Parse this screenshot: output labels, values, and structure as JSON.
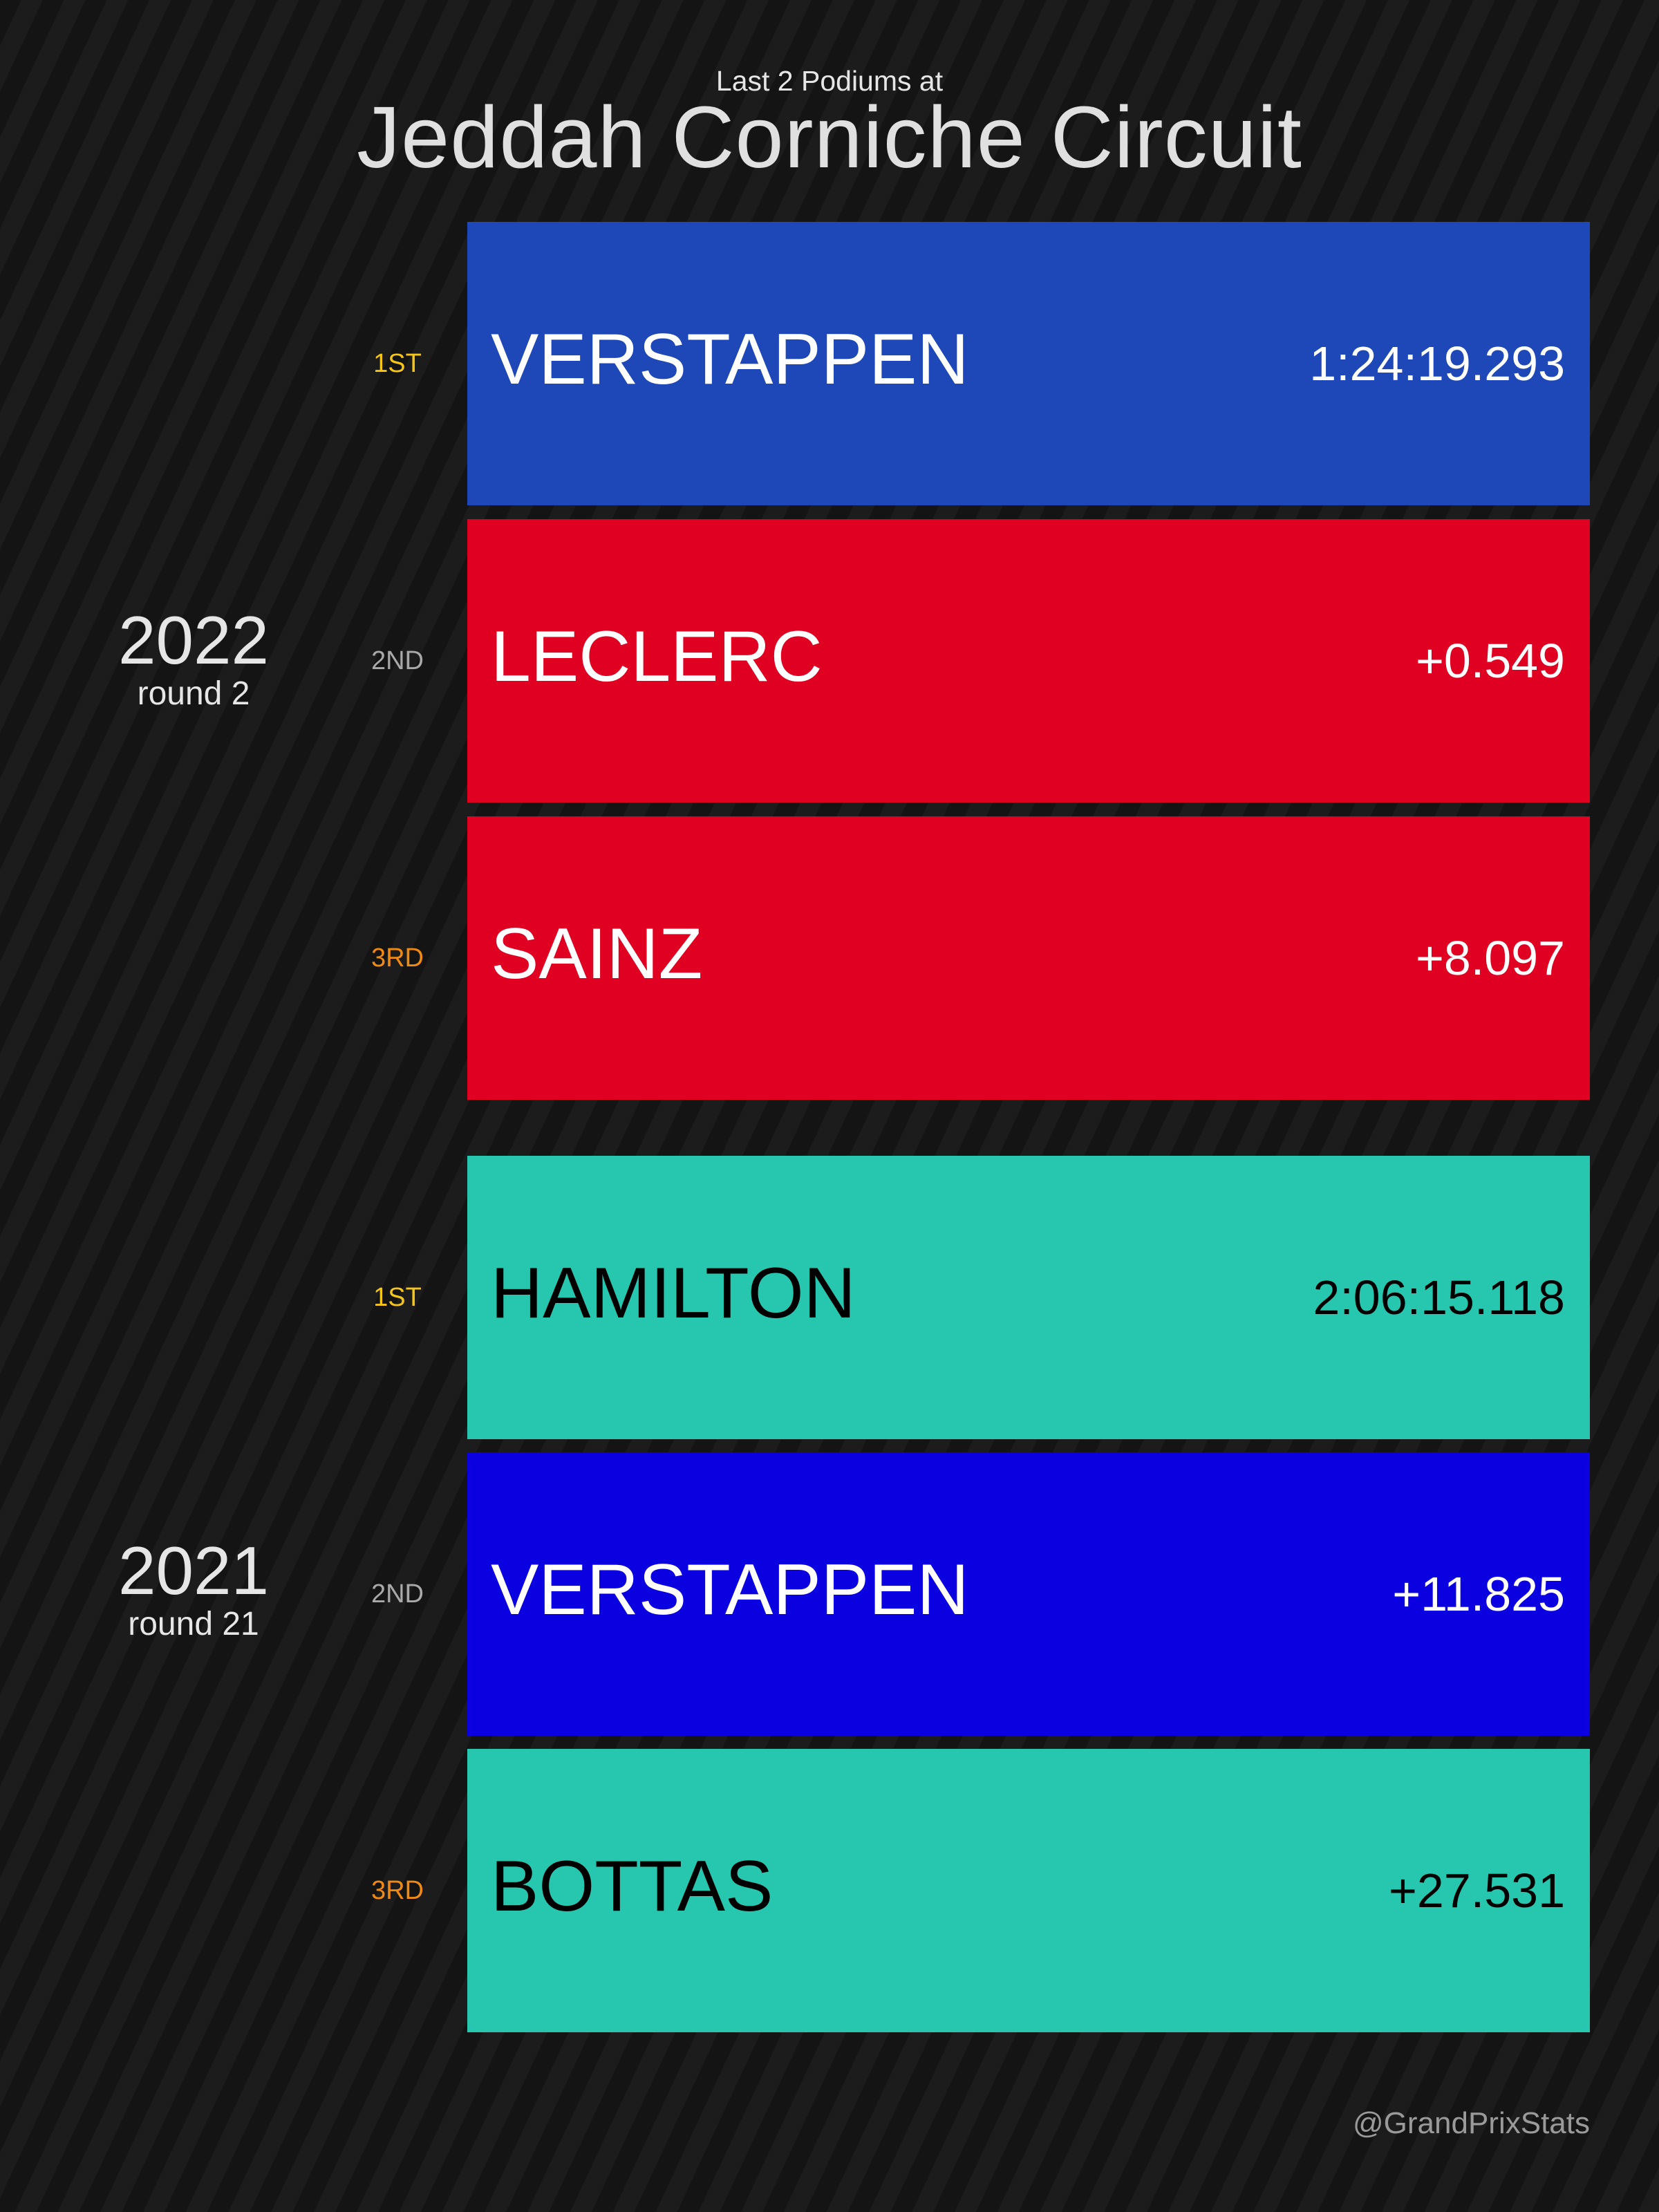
{
  "header": {
    "subtitle": "Last 2 Podiums at",
    "title": "Jeddah Corniche Circuit"
  },
  "races": [
    {
      "year": "2022",
      "round": "round 2",
      "podium": [
        {
          "position": "1ST",
          "position_color": "#f5c518",
          "driver": "VERSTAPPEN",
          "time": "1:24:19.293",
          "team_color": "#1e48b8",
          "text_color": "#ffffff"
        },
        {
          "position": "2ND",
          "position_color": "#a9a9a9",
          "driver": "LECLERC",
          "time": "+0.549",
          "team_color": "#e00022",
          "text_color": "#ffffff"
        },
        {
          "position": "3RD",
          "position_color": "#f08a10",
          "driver": "SAINZ",
          "time": "+8.097",
          "team_color": "#e00022",
          "text_color": "#ffffff"
        }
      ]
    },
    {
      "year": "2021",
      "round": "round 21",
      "podium": [
        {
          "position": "1ST",
          "position_color": "#f5c518",
          "driver": "HAMILTON",
          "time": "2:06:15.118",
          "team_color": "#27c6ae",
          "text_color": "#000000"
        },
        {
          "position": "2ND",
          "position_color": "#a9a9a9",
          "driver": "VERSTAPPEN",
          "time": "+11.825",
          "team_color": "#0a00e0",
          "text_color": "#ffffff"
        },
        {
          "position": "3RD",
          "position_color": "#f08a10",
          "driver": "BOTTAS",
          "time": "+27.531",
          "team_color": "#27c6ae",
          "text_color": "#000000"
        }
      ]
    }
  ],
  "footer": {
    "credit": "@GrandPrixStats"
  }
}
